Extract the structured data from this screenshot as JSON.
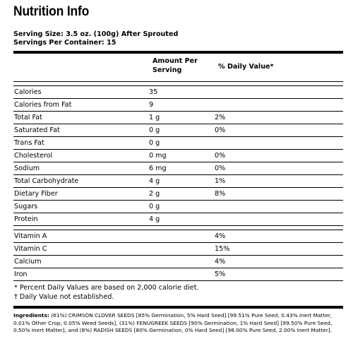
{
  "title": "Nutrition Info",
  "serving": {
    "size": "Serving Size: 3.5 oz. (100g) After Sprouted",
    "per_container": "Servings Per Container: 15"
  },
  "header": {
    "amount": "Amount Per Serving",
    "daily_value": "% Daily Value*"
  },
  "nutrients": [
    {
      "name": "Calories",
      "amount": "35",
      "dv": ""
    },
    {
      "name": "Calories from Fat",
      "amount": "9",
      "dv": ""
    },
    {
      "name": "Total Fat",
      "amount": "1 g",
      "dv": "2%"
    },
    {
      "name": "Saturated Fat",
      "amount": "0 g",
      "dv": "0%"
    },
    {
      "name": "Trans Fat",
      "amount": "0 g",
      "dv": ""
    },
    {
      "name": "Cholesterol",
      "amount": "0 mg",
      "dv": "0%"
    },
    {
      "name": "Sodium",
      "amount": "6 mg",
      "dv": "0%"
    },
    {
      "name": "Total Carbohydrate",
      "amount": "4 g",
      "dv": "1%"
    },
    {
      "name": "Dietary Fiber",
      "amount": "2 g",
      "dv": "8%"
    },
    {
      "name": "Sugars",
      "amount": "0 g",
      "dv": ""
    },
    {
      "name": "Protein",
      "amount": "4 g",
      "dv": ""
    }
  ],
  "vitamins": [
    {
      "name": "Vitamin A",
      "amount": "",
      "dv": "4%"
    },
    {
      "name": "Vitamin C",
      "amount": "",
      "dv": "15%"
    },
    {
      "name": "Calcium",
      "amount": "",
      "dv": "4%"
    },
    {
      "name": "Iron",
      "amount": "",
      "dv": "5%"
    }
  ],
  "footnotes": {
    "percent": "* Percent Daily Values are based on 2,000 calorie diet.",
    "not_established": "† Daily Value not established."
  },
  "ingredients": {
    "label": "Ingredients:",
    "text": " (61%) CRIMSON CLOVER SEEDS [85% Germination, 5% Hard Seed] [99.51% Pure Seed, 0.43% Inert Matter, 0.01% Other Crop, 0.05% Weed Seeds], (31%) FENUGREEK SEEDS [90% Germination, 1% Hard Seed] [99.50% Pure Seed, 0.50% Inert Matter], and (8%) RADISH SEEDS [80% Germination, 0% Hard Seed] [98.00% Pure Seed, 2.00% Inert Matter]."
  }
}
